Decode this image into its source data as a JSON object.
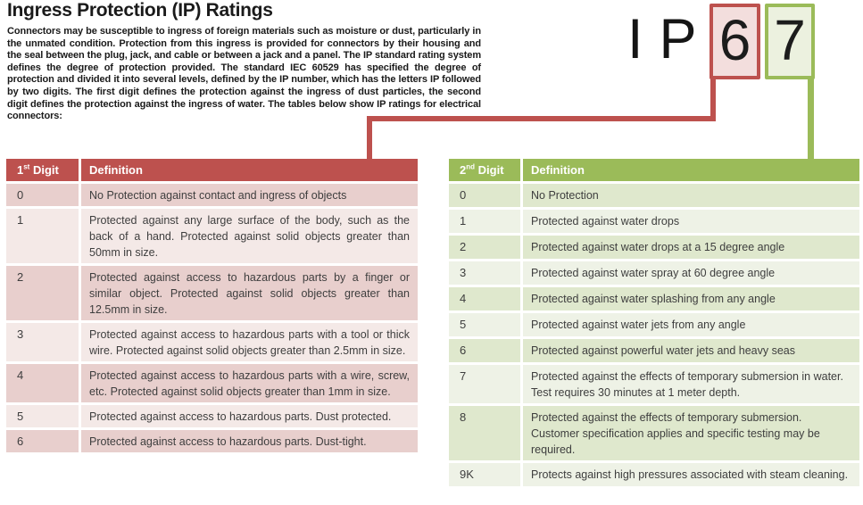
{
  "page": {
    "title": "Ingress Protection (IP) Ratings",
    "intro": "Connectors may be susceptible to ingress of foreign materials such as moisture or dust, particularly in the unmated condition. Protection from this ingress is provided for connectors by their housing and the seal between the plug, jack, and cable or between a jack and a panel. The IP standard rating system defines the degree of protection provided. The standard IEC 60529 has specified the degree of protection and divided it into several levels, defined by the IP number, which has the letters IP followed by two digits. The first digit defines the protection against the ingress of dust particles, the second digit defines the protection against the ingress of water. The tables below show IP ratings for electrical connectors:"
  },
  "ip_badge": {
    "letters": "IP",
    "first_digit": "6",
    "second_digit": "7"
  },
  "colors": {
    "ink": "#1a1a1a",
    "table_text": "#3e3e3e",
    "red_accent": "#bd514e",
    "red_band_dark": "#e8cfcd",
    "red_band_light": "#f4e9e7",
    "red_box_fill": "#f3dedd",
    "green_accent": "#9bbb59",
    "green_band_dark": "#dfe8cd",
    "green_band_light": "#eef2e6",
    "green_box_fill": "#ecf1df"
  },
  "tables": {
    "first": {
      "header": {
        "digit_number": "1",
        "digit_ordinal": "st",
        "digit_word": "Digit",
        "definition_label": "Definition"
      },
      "rows": [
        {
          "digit": "0",
          "definition": "No Protection against contact and ingress of objects"
        },
        {
          "digit": "1",
          "definition": "Protected against any large surface of the body, such as the back of a hand. Protected against solid objects greater than 50mm in size."
        },
        {
          "digit": "2",
          "definition": "Protected against access to hazardous parts by a finger or similar object. Protected against solid objects greater than 12.5mm in size."
        },
        {
          "digit": "3",
          "definition": "Protected against access to hazardous parts with a tool or thick wire. Protected against solid objects greater than 2.5mm in size."
        },
        {
          "digit": "4",
          "definition": "Protected against access to hazardous parts with a wire, screw, etc. Protected against solid objects greater than 1mm in size."
        },
        {
          "digit": "5",
          "definition": "Protected against access to hazardous parts. Dust protected."
        },
        {
          "digit": "6",
          "definition": "Protected against access to hazardous parts. Dust-tight."
        }
      ]
    },
    "second": {
      "header": {
        "digit_number": "2",
        "digit_ordinal": "nd",
        "digit_word": "Digit",
        "definition_label": "Definition"
      },
      "rows": [
        {
          "digit": "0",
          "definition": "No Protection"
        },
        {
          "digit": "1",
          "definition": "Protected against water drops"
        },
        {
          "digit": "2",
          "definition": "Protected against water drops at a 15 degree angle"
        },
        {
          "digit": "3",
          "definition": "Protected against water spray at 60 degree angle"
        },
        {
          "digit": "4",
          "definition": "Protected against water splashing from any angle"
        },
        {
          "digit": "5",
          "definition": "Protected against water jets from any angle"
        },
        {
          "digit": "6",
          "definition": "Protected against powerful water jets and heavy seas"
        },
        {
          "digit": "7",
          "definition": "Protected against the effects of temporary submersion in water. Test requires 30 minutes at 1 meter depth."
        },
        {
          "digit": "8",
          "definition": "Protected against the effects of temporary submersion. Customer specification applies and specific testing may be required."
        },
        {
          "digit": "9K",
          "definition": "Protects against high pressures associated with steam cleaning."
        }
      ]
    }
  }
}
